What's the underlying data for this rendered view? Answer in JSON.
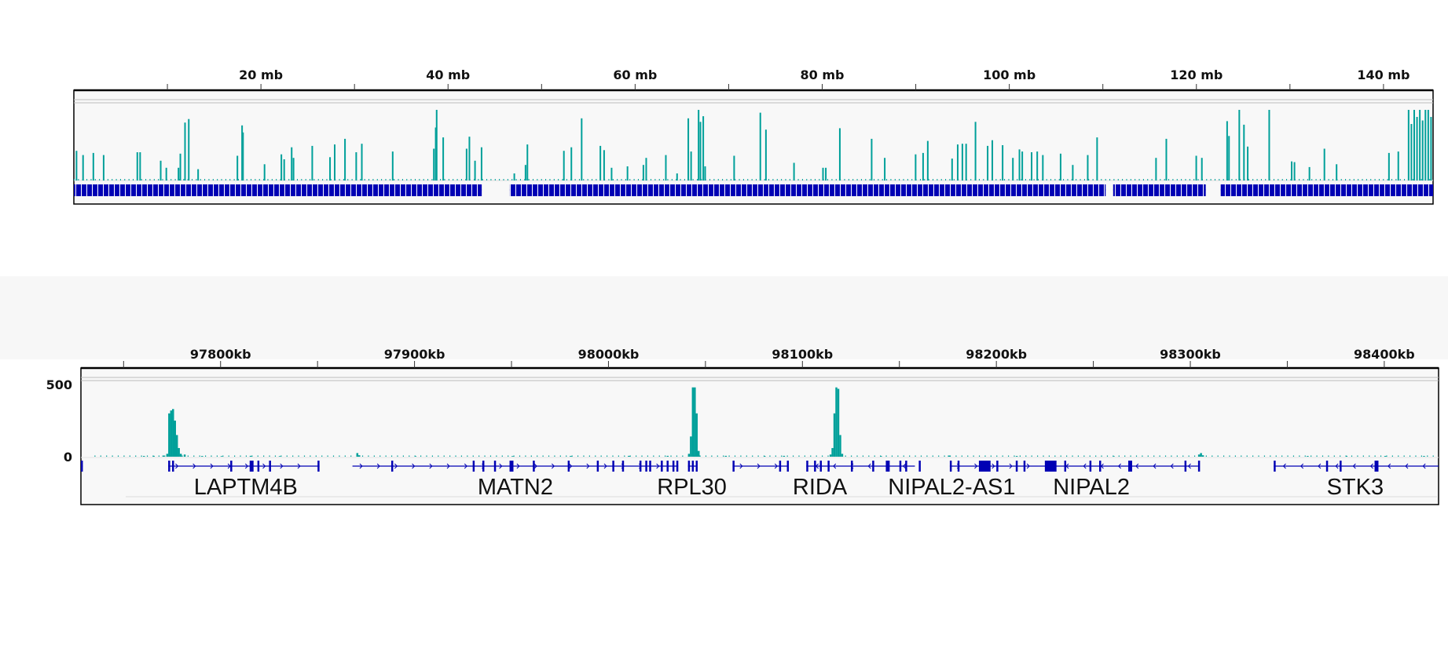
{
  "colors": {
    "coverage": "#00A09A",
    "genes": "#0000B4",
    "background": "#F8F8F8",
    "axis": "#000000"
  },
  "chart_data": [
    {
      "type": "bar",
      "view": "chromosome overview",
      "x_unit": "mb",
      "xlim": [
        0,
        145.3
      ],
      "x_ticks": [
        {
          "value": 10,
          "label": ""
        },
        {
          "value": 20,
          "label": "20 mb"
        },
        {
          "value": 30,
          "label": ""
        },
        {
          "value": 40,
          "label": "40 mb"
        },
        {
          "value": 50,
          "label": ""
        },
        {
          "value": 60,
          "label": "60 mb"
        },
        {
          "value": 70,
          "label": ""
        },
        {
          "value": 80,
          "label": "80 mb"
        },
        {
          "value": 90,
          "label": ""
        },
        {
          "value": 100,
          "label": "100 mb"
        },
        {
          "value": 110,
          "label": ""
        },
        {
          "value": 120,
          "label": "120 mb"
        },
        {
          "value": 130,
          "label": ""
        },
        {
          "value": 140,
          "label": "140 mb"
        }
      ],
      "y_relative": true,
      "coverage": [
        [
          0.2,
          0.42
        ],
        [
          0.9,
          0.36
        ],
        [
          2.0,
          0.39
        ],
        [
          3.1,
          0.36
        ],
        [
          6.7,
          0.4
        ],
        [
          7.0,
          0.4
        ],
        [
          9.2,
          0.28
        ],
        [
          9.8,
          0.18
        ],
        [
          11.1,
          0.18
        ],
        [
          11.3,
          0.38
        ],
        [
          11.8,
          0.82
        ],
        [
          12.2,
          0.87
        ],
        [
          13.2,
          0.16
        ],
        [
          17.4,
          0.35
        ],
        [
          17.9,
          0.78
        ],
        [
          18.0,
          0.68
        ],
        [
          20.3,
          0.23
        ],
        [
          22.1,
          0.37
        ],
        [
          22.4,
          0.3
        ],
        [
          23.2,
          0.47
        ],
        [
          23.4,
          0.32
        ],
        [
          25.4,
          0.49
        ],
        [
          27.3,
          0.33
        ],
        [
          27.8,
          0.51
        ],
        [
          28.9,
          0.59
        ],
        [
          30.1,
          0.4
        ],
        [
          30.7,
          0.52
        ],
        [
          34.0,
          0.41
        ],
        [
          38.4,
          0.45
        ],
        [
          38.6,
          0.75
        ],
        [
          38.7,
          1.0
        ],
        [
          39.4,
          0.61
        ],
        [
          41.9,
          0.45
        ],
        [
          42.2,
          0.62
        ],
        [
          42.8,
          0.28
        ],
        [
          43.5,
          0.47
        ],
        [
          47.0,
          0.1
        ],
        [
          48.2,
          0.22
        ],
        [
          48.4,
          0.51
        ],
        [
          52.3,
          0.42
        ],
        [
          53.1,
          0.47
        ],
        [
          54.2,
          0.88
        ],
        [
          56.2,
          0.49
        ],
        [
          56.6,
          0.43
        ],
        [
          57.4,
          0.18
        ],
        [
          59.1,
          0.2
        ],
        [
          60.8,
          0.22
        ],
        [
          61.1,
          0.32
        ],
        [
          63.2,
          0.36
        ],
        [
          64.4,
          0.1
        ],
        [
          65.6,
          0.88
        ],
        [
          65.9,
          0.41
        ],
        [
          66.7,
          1.0
        ],
        [
          66.9,
          0.83
        ],
        [
          67.2,
          0.91
        ],
        [
          67.4,
          0.2
        ],
        [
          70.5,
          0.35
        ],
        [
          73.3,
          0.96
        ],
        [
          73.9,
          0.72
        ],
        [
          76.9,
          0.25
        ],
        [
          80.0,
          0.18
        ],
        [
          80.3,
          0.18
        ],
        [
          81.8,
          0.74
        ],
        [
          85.2,
          0.59
        ],
        [
          86.6,
          0.32
        ],
        [
          89.9,
          0.37
        ],
        [
          90.7,
          0.39
        ],
        [
          91.2,
          0.56
        ],
        [
          93.8,
          0.31
        ],
        [
          94.4,
          0.51
        ],
        [
          94.9,
          0.52
        ],
        [
          95.3,
          0.52
        ],
        [
          96.3,
          0.83
        ],
        [
          97.6,
          0.49
        ],
        [
          98.1,
          0.57
        ],
        [
          99.2,
          0.5
        ],
        [
          100.3,
          0.32
        ],
        [
          101.0,
          0.44
        ],
        [
          101.3,
          0.41
        ],
        [
          102.3,
          0.4
        ],
        [
          102.9,
          0.41
        ],
        [
          103.5,
          0.36
        ],
        [
          105.4,
          0.38
        ],
        [
          106.7,
          0.22
        ],
        [
          108.3,
          0.36
        ],
        [
          109.3,
          0.61
        ],
        [
          115.6,
          0.32
        ],
        [
          116.7,
          0.59
        ],
        [
          119.9,
          0.35
        ],
        [
          120.5,
          0.32
        ],
        [
          123.2,
          0.84
        ],
        [
          123.4,
          0.63
        ],
        [
          124.5,
          1.0
        ],
        [
          125.0,
          0.79
        ],
        [
          125.4,
          0.48
        ],
        [
          127.7,
          1.0
        ],
        [
          130.1,
          0.27
        ],
        [
          130.4,
          0.26
        ],
        [
          132.0,
          0.19
        ],
        [
          133.6,
          0.45
        ],
        [
          134.9,
          0.23
        ],
        [
          140.5,
          0.39
        ],
        [
          141.5,
          0.41
        ],
        [
          142.6,
          1.0
        ],
        [
          142.9,
          0.8
        ],
        [
          143.2,
          1.0
        ],
        [
          143.5,
          0.9
        ],
        [
          143.8,
          1.0
        ],
        [
          144.1,
          0.85
        ],
        [
          144.4,
          1.0
        ],
        [
          144.7,
          1.0
        ],
        [
          145.0,
          0.9
        ]
      ],
      "gene_density_segments": [
        [
          0,
          43.6
        ],
        [
          46.6,
          110.3
        ],
        [
          111.1,
          121.0
        ],
        [
          122.6,
          145.3
        ]
      ]
    },
    {
      "type": "bar",
      "view": "locus",
      "x_unit": "kb",
      "xlim": [
        97728,
        98428
      ],
      "ylim": [
        0,
        500
      ],
      "y_ticks": [
        {
          "value": 500,
          "label": "500"
        },
        {
          "value": 0,
          "label": "0"
        }
      ],
      "x_ticks": [
        {
          "value": 97750,
          "label": ""
        },
        {
          "value": 97800,
          "label": "97800kb"
        },
        {
          "value": 97850,
          "label": ""
        },
        {
          "value": 97900,
          "label": "97900kb"
        },
        {
          "value": 97950,
          "label": ""
        },
        {
          "value": 98000,
          "label": "98000kb"
        },
        {
          "value": 98050,
          "label": ""
        },
        {
          "value": 98100,
          "label": "98100kb"
        },
        {
          "value": 98150,
          "label": ""
        },
        {
          "value": 98200,
          "label": "98200kb"
        },
        {
          "value": 98250,
          "label": ""
        },
        {
          "value": 98300,
          "label": "98300kb"
        },
        {
          "value": 98350,
          "label": ""
        },
        {
          "value": 98400,
          "label": "98400kb"
        }
      ],
      "coverage": [
        [
          97760,
          5
        ],
        [
          97765,
          6
        ],
        [
          97770,
          8
        ],
        [
          97772,
          20
        ],
        [
          97773,
          300
        ],
        [
          97774,
          320
        ],
        [
          97775,
          330
        ],
        [
          97776,
          250
        ],
        [
          97777,
          150
        ],
        [
          97778,
          60
        ],
        [
          97779,
          20
        ],
        [
          97781,
          15
        ],
        [
          97790,
          5
        ],
        [
          97800,
          4
        ],
        [
          97815,
          6
        ],
        [
          97830,
          4
        ],
        [
          97870,
          25
        ],
        [
          97871,
          10
        ],
        [
          97900,
          4
        ],
        [
          97950,
          4
        ],
        [
          97980,
          5
        ],
        [
          98010,
          6
        ],
        [
          98030,
          6
        ],
        [
          98041,
          20
        ],
        [
          98042,
          140
        ],
        [
          98043,
          480
        ],
        [
          98044,
          480
        ],
        [
          98045,
          300
        ],
        [
          98046,
          40
        ],
        [
          98060,
          6
        ],
        [
          98080,
          5
        ],
        [
          98090,
          6
        ],
        [
          98114,
          15
        ],
        [
          98115,
          60
        ],
        [
          98116,
          300
        ],
        [
          98117,
          480
        ],
        [
          98118,
          470
        ],
        [
          98119,
          150
        ],
        [
          98120,
          20
        ],
        [
          98140,
          5
        ],
        [
          98175,
          8
        ],
        [
          98210,
          5
        ],
        [
          98260,
          4
        ],
        [
          98304,
          15
        ],
        [
          98305,
          25
        ],
        [
          98306,
          10
        ],
        [
          98360,
          5
        ],
        [
          98380,
          6
        ],
        [
          98400,
          5
        ],
        [
          98420,
          5
        ]
      ],
      "genes": [
        {
          "name": "",
          "start": 97728,
          "end": 97729,
          "strand": "+",
          "exons": [
            [
              97728,
              97729
            ]
          ]
        },
        {
          "name": "LAPTM4B",
          "label_at": 97813,
          "start": 97773,
          "end": 97851,
          "strand": "+",
          "exons": [
            [
              97773,
              97774
            ],
            [
              97775,
              97776
            ],
            [
              97805,
              97806
            ],
            [
              97815,
              97817
            ],
            [
              97819,
              97820
            ],
            [
              97825,
              97826
            ],
            [
              97850,
              97851
            ]
          ]
        },
        {
          "name": "MATN2",
          "label_at": 97952,
          "start": 97868,
          "end": 98036,
          "strand": "+",
          "exons": [
            [
              97888,
              97889
            ],
            [
              97930,
              97931
            ],
            [
              97935,
              97936
            ],
            [
              97941,
              97942
            ],
            [
              97949,
              97951
            ],
            [
              97961,
              97962
            ],
            [
              97979,
              97980
            ],
            [
              97994,
              97995
            ],
            [
              98002,
              98003
            ],
            [
              98007,
              98008
            ],
            [
              98016,
              98017
            ],
            [
              98019,
              98020
            ],
            [
              98021,
              98022
            ],
            [
              98027,
              98028
            ],
            [
              98030,
              98031
            ],
            [
              98033,
              98034
            ],
            [
              98035,
              98036
            ]
          ]
        },
        {
          "name": "RPL30",
          "label_at": 98043,
          "start": 98041,
          "end": 98046,
          "strand": "-",
          "exons": [
            [
              98041,
              98042
            ],
            [
              98043,
              98044
            ],
            [
              98045,
              98046
            ]
          ]
        },
        {
          "name": "",
          "start": 98064,
          "end": 98093,
          "strand": "+",
          "exons": [
            [
              98064,
              98065
            ],
            [
              98088,
              98089
            ],
            [
              98092,
              98093
            ]
          ]
        },
        {
          "name": "RIDA",
          "label_at": 98109,
          "start": 98102,
          "end": 98158,
          "strand": "-",
          "exons": [
            [
              98102,
              98103
            ],
            [
              98106,
              98107
            ],
            [
              98109,
              98110
            ],
            [
              98113,
              98114
            ],
            [
              98125,
              98126
            ],
            [
              98136,
              98137
            ],
            [
              98143,
              98145
            ],
            [
              98150,
              98151
            ],
            [
              98153,
              98154
            ],
            [
              98160,
              98161
            ]
          ]
        },
        {
          "name": "NIPAL2-AS1",
          "label_at": 98177,
          "start": 98176,
          "end": 98222,
          "strand": "+",
          "exons": [
            [
              98176,
              98177
            ],
            [
              98180,
              98181
            ],
            [
              98191,
              98197
            ],
            [
              98200,
              98201
            ],
            [
              98210,
              98211
            ],
            [
              98214,
              98215
            ],
            [
              98225,
              98231
            ],
            [
              98235,
              98236
            ]
          ]
        },
        {
          "name": "NIPAL2",
          "label_at": 98249,
          "start": 98222,
          "end": 98304,
          "strand": "-",
          "exons": [
            [
              98248,
              98249
            ],
            [
              98253,
              98254
            ],
            [
              98268,
              98270
            ],
            [
              98297,
              98298
            ],
            [
              98304,
              98305
            ]
          ]
        },
        {
          "name": "STK3",
          "label_at": 98385,
          "start": 98343,
          "end": 98428,
          "strand": "-",
          "exons": [
            [
              98343,
              98344
            ],
            [
              98370,
              98371
            ],
            [
              98377,
              98378
            ],
            [
              98395,
              98397
            ]
          ]
        }
      ]
    }
  ]
}
